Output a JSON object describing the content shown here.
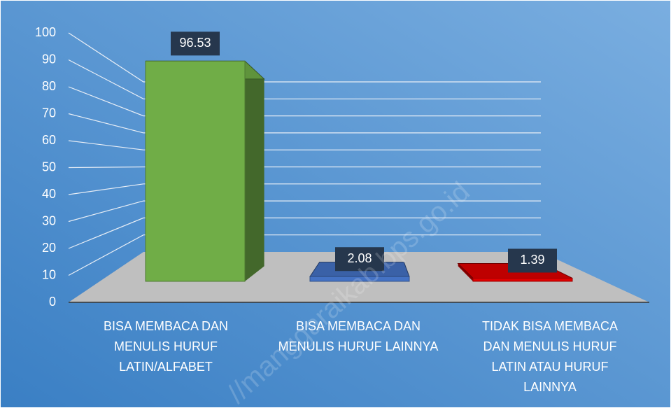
{
  "chart_data": {
    "type": "bar3d",
    "categories": [
      "BISA MEMBACA DAN MENULIS HURUF LATIN/ALFABET",
      "BISA MEMBACA DAN MENULIS HURUF LAINNYA",
      "TIDAK BISA MEMBACA DAN MENULIS HURUF LATIN ATAU HURUF LAINNYA"
    ],
    "values": [
      96.53,
      2.08,
      1.39
    ],
    "colors": [
      "#70ad47",
      "#4472c4",
      "#e00000"
    ],
    "ylim": [
      0,
      100
    ],
    "yticks": [
      0,
      10,
      20,
      30,
      40,
      50,
      60,
      70,
      80,
      90,
      100
    ],
    "grid": true,
    "watermark": "//manggaraikab.bps.go.id"
  }
}
